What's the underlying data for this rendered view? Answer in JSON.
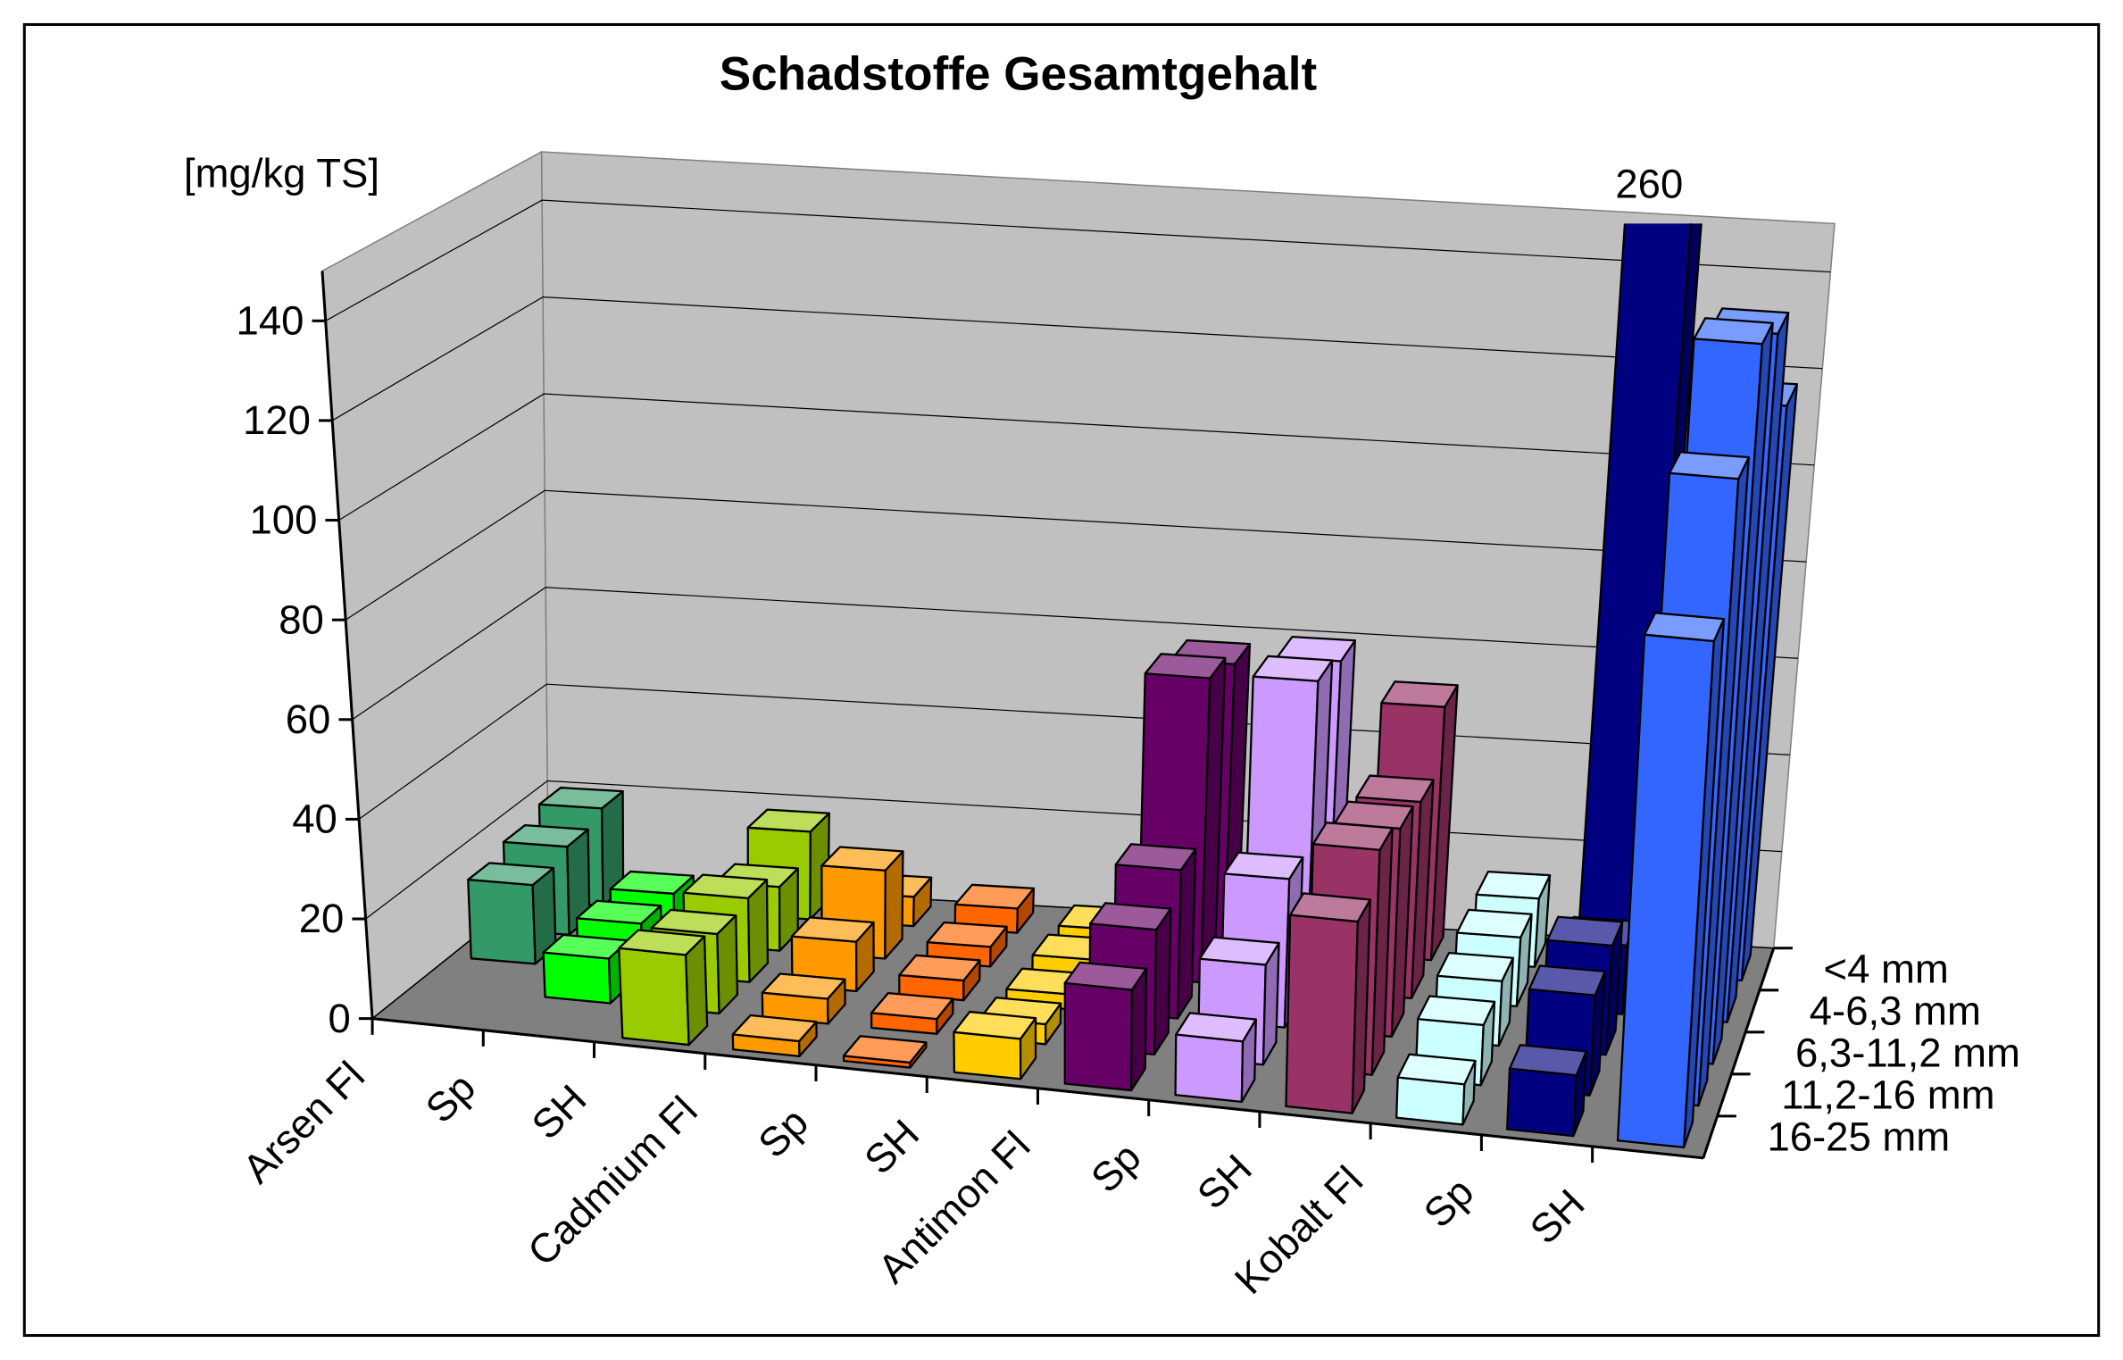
{
  "chart_data": {
    "type": "bar3d",
    "title": "Schadstoffe Gesamtgehalt",
    "y_label": "[mg/kg TS]",
    "categories": [
      "Arsen Fl",
      "Sp",
      "SH",
      "Cadmium Fl",
      "Sp",
      "SH",
      "Antimon Fl",
      "Sp",
      "SH",
      "Kobalt Fl",
      "Sp",
      "SH"
    ],
    "category_colors": [
      "#339966",
      "#00ff00",
      "#99cc00",
      "#ff9900",
      "#ff6600",
      "#ffcc00",
      "#660066",
      "#cc99ff",
      "#993366",
      "#ccffff",
      "#000080",
      "#3366ff"
    ],
    "series": [
      {
        "name": "<4 mm",
        "values": [
          20,
          null,
          18,
          6,
          5,
          2,
          58,
          60,
          52,
          14,
          260,
          118
        ]
      },
      {
        "name": "4-6,3 mm",
        "values": [
          18,
          10,
          13,
          18,
          4,
          3,
          62,
          63,
          40,
          14,
          14,
          140
        ]
      },
      {
        "name": "6,3-11,2 mm",
        "values": [
          16,
          10,
          17,
          10,
          4,
          3,
          30,
          30,
          42,
          13,
          22,
          145
        ]
      },
      {
        "name": "11,2-16 mm",
        "values": [
          null,
          9,
          16,
          5,
          3,
          4,
          25,
          20,
          45,
          12,
          20,
          125
        ]
      },
      {
        "name": "16-25 mm",
        "values": [
          null,
          null,
          18,
          3,
          1,
          8,
          20,
          12,
          38,
          8,
          12,
          100
        ]
      }
    ],
    "ylim": [
      0,
      150
    ],
    "yticks": [
      0,
      20,
      40,
      60,
      80,
      100,
      120,
      140
    ],
    "grid": true
  }
}
